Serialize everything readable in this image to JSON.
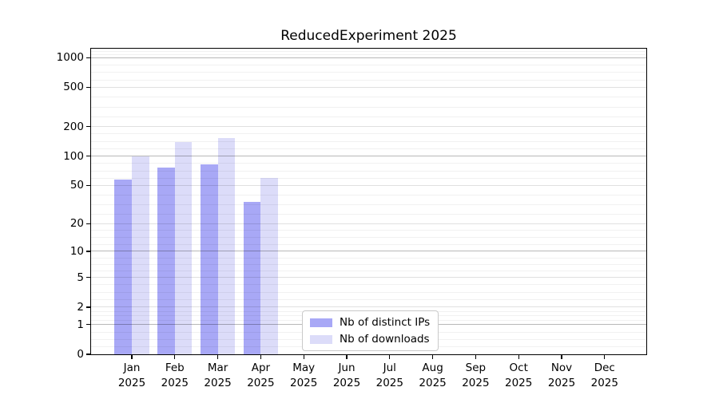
{
  "title": "ReducedExperiment 2025",
  "chart_data": {
    "type": "bar",
    "title": "ReducedExperiment 2025",
    "categories": [
      "Jan",
      "Feb",
      "Mar",
      "Apr",
      "May",
      "Jun",
      "Jul",
      "Aug",
      "Sep",
      "Oct",
      "Nov",
      "Dec"
    ],
    "year": "2025",
    "xlabel": "",
    "ylabel": "",
    "y_axis": {
      "scale": "log1p",
      "ticks": [
        0,
        1,
        2,
        5,
        10,
        20,
        50,
        100,
        200,
        500,
        1000
      ],
      "ylim": [
        0,
        1230
      ]
    },
    "series": [
      {
        "name": "Nb of distinct IPs",
        "color": "#a8a8f6",
        "values": [
          58,
          76,
          83,
          34,
          0,
          0,
          0,
          0,
          0,
          0,
          0,
          0
        ]
      },
      {
        "name": "Nb of downloads",
        "color": "#dcdcf9",
        "values": [
          100,
          139,
          154,
          60,
          0,
          0,
          0,
          0,
          0,
          0,
          0,
          0
        ]
      }
    ],
    "legend_position": "inside bottom center",
    "grid": "on"
  },
  "colors": {
    "background": "#ffffff",
    "spine": "#000000",
    "grid_power10": "rgba(0,0,0,0.28)",
    "grid_major": "rgba(0,0,0,0.12)",
    "grid_minor": "rgba(0,0,0,0.055)",
    "legend_border": "#c9c9c9"
  }
}
